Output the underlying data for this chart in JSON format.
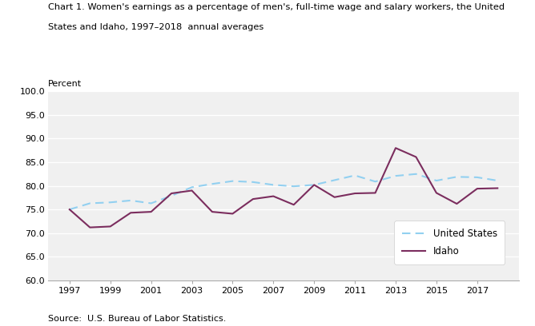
{
  "title_line1": "Chart 1. Women's earnings as a percentage of men's, full-time wage and salary workers, the United",
  "title_line2": "States and Idaho, 1997–2018  annual averages",
  "ylabel": "Percent",
  "source": "Source:  U.S. Bureau of Labor Statistics.",
  "years": [
    1997,
    1998,
    1999,
    2000,
    2001,
    2002,
    2003,
    2004,
    2005,
    2006,
    2007,
    2008,
    2009,
    2010,
    2011,
    2012,
    2013,
    2014,
    2015,
    2016,
    2017,
    2018
  ],
  "us_data": [
    75.0,
    76.3,
    76.5,
    76.9,
    76.3,
    77.9,
    79.7,
    80.4,
    81.0,
    80.8,
    80.2,
    79.9,
    80.2,
    81.2,
    82.2,
    80.9,
    82.1,
    82.5,
    81.1,
    81.9,
    81.8,
    81.1
  ],
  "idaho_data": [
    75.0,
    71.2,
    71.4,
    74.3,
    74.5,
    78.4,
    79.0,
    74.5,
    74.1,
    77.2,
    77.8,
    76.0,
    80.2,
    77.6,
    78.4,
    78.5,
    88.0,
    86.1,
    78.5,
    76.2,
    79.4,
    79.5
  ],
  "us_color": "#92d0f0",
  "idaho_color": "#7b2d5e",
  "ylim": [
    60.0,
    100.0
  ],
  "yticks": [
    60.0,
    65.0,
    70.0,
    75.0,
    80.0,
    85.0,
    90.0,
    95.0,
    100.0
  ],
  "xticks": [
    1997,
    1999,
    2001,
    2003,
    2005,
    2007,
    2009,
    2011,
    2013,
    2015,
    2017
  ],
  "plot_bg": "#f0f0f0",
  "grid_color": "#ffffff"
}
